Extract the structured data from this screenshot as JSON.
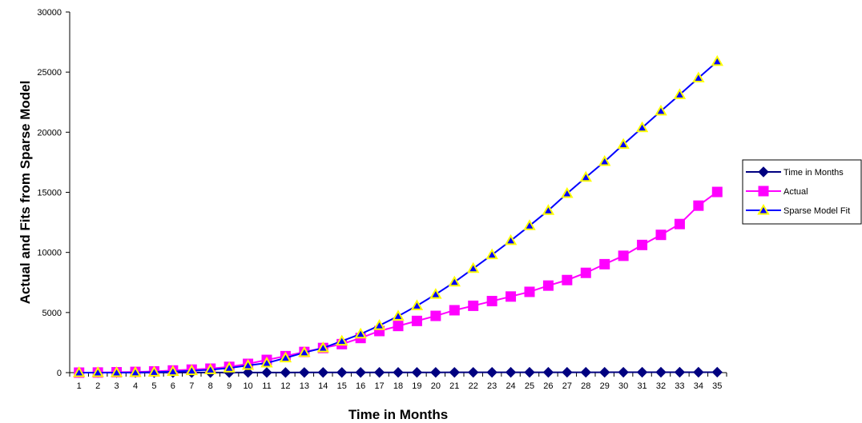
{
  "chart_data": {
    "type": "line",
    "title": "",
    "xlabel": "Time in Months",
    "ylabel": "Actual and Fits from Sparse Model",
    "categories": [
      "1",
      "2",
      "3",
      "4",
      "5",
      "6",
      "7",
      "8",
      "9",
      "10",
      "11",
      "12",
      "13",
      "14",
      "15",
      "16",
      "17",
      "18",
      "19",
      "20",
      "21",
      "22",
      "23",
      "24",
      "25",
      "26",
      "27",
      "28",
      "29",
      "30",
      "31",
      "32",
      "33",
      "34",
      "35"
    ],
    "ylim": [
      0,
      30000
    ],
    "yticks": [
      "0",
      "5000",
      "10000",
      "15000",
      "20000",
      "25000",
      "30000"
    ],
    "grid": false,
    "legend_position": "right",
    "series": [
      {
        "name": "Time in Months",
        "color": "#000080",
        "marker": "diamond",
        "values": [
          1,
          2,
          3,
          4,
          5,
          6,
          7,
          8,
          9,
          10,
          11,
          12,
          13,
          14,
          15,
          16,
          17,
          18,
          19,
          20,
          21,
          22,
          23,
          24,
          25,
          26,
          27,
          28,
          29,
          30,
          31,
          32,
          33,
          34,
          35
        ]
      },
      {
        "name": "Actual",
        "color": "#FF00FF",
        "marker": "square",
        "values": [
          0,
          10,
          30,
          60,
          100,
          180,
          250,
          330,
          480,
          730,
          1060,
          1370,
          1720,
          2050,
          2370,
          2880,
          3460,
          3880,
          4300,
          4720,
          5190,
          5560,
          5950,
          6330,
          6720,
          7240,
          7700,
          8300,
          9020,
          9720,
          10620,
          11460,
          12360,
          13890,
          15030
        ]
      },
      {
        "name": "Sparse Model Fit",
        "color": "#0000FF",
        "marker": "triangle",
        "marker_fill": "#FFFF00",
        "values": [
          0,
          0,
          0,
          10,
          40,
          90,
          160,
          240,
          380,
          600,
          800,
          1220,
          1670,
          2050,
          2620,
          3210,
          3920,
          4700,
          5560,
          6510,
          7530,
          8660,
          9800,
          10980,
          12220,
          13490,
          14900,
          16250,
          17560,
          18980,
          20370,
          21760,
          23120,
          24510,
          25880
        ]
      }
    ]
  }
}
